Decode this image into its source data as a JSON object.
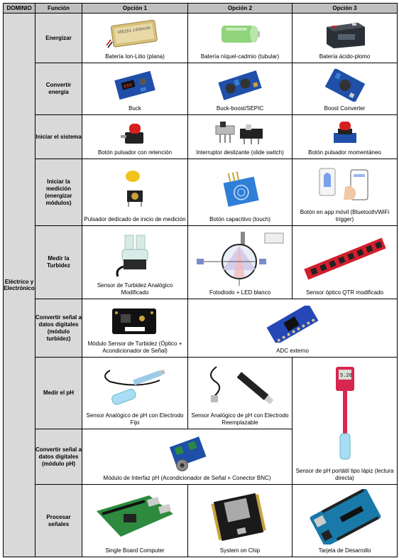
{
  "headers": {
    "dominio": "DOMINIO",
    "funcion": "Función",
    "op1": "Opción 1",
    "op2": "Opción 2",
    "op3": "Opción 3"
  },
  "dominio": "Eléctrico y Electrónico",
  "rows": {
    "energizar": {
      "func": "Energizar",
      "op1": "Batería Ion-Litio (plana)",
      "op2": "Batería níquel-cadmio (tubular)",
      "op3": "Batería ácido-plomo",
      "battery_label": "455261 1400mAh"
    },
    "convertir": {
      "func": "Convertir energía",
      "op1": "Buck",
      "op2": "Buck-boost/SEPIC",
      "op3": "Boost Converter"
    },
    "iniciar": {
      "func": "Iniciar el sistema",
      "op1": "Botón pulsador con retención",
      "op2": "Interruptor deslizante (slide switch)",
      "op3": "Botón pulsador momentáneo"
    },
    "medicion": {
      "func": "Iniciar la medición (energizar módulos)",
      "op1": "Pulsador dedicado de inicio de medición",
      "op2": "Botón capacitivo (touch)",
      "op3": "Botón en app móvil (Bluetooth/WiFi trigger)"
    },
    "turbidez": {
      "func": "Medir la Turbidez",
      "op1": "Sensor de Turbidez Analógico Modificado",
      "op2": "Fotodiodo + LED blanco",
      "op3": "Sensor óptico QTR modificado"
    },
    "conv_turb": {
      "func": "Convertir señal a datos digitales (módulo turbidez)",
      "op1": "Módulo Sensor de Turbidez (Óptico + Acondicionador de Señal)",
      "op2": "ADC externo"
    },
    "ph": {
      "func": "Medir el pH",
      "op1": "Sensor Analógico de pH con Electrodo Fijo",
      "op2": "Sensor Analógico de pH con Electrodo Reemplazable",
      "op3": "Sensor de pH portátil tipo lápiz (lectura directa)",
      "meter_reading": "5.26"
    },
    "conv_ph": {
      "func": "Convertir señal a datos digitales (módulo pH)",
      "op1": "Módulo de Interfaz pH (Acondicionador de Señal + Conector BNC)"
    },
    "procesar": {
      "func": "Procesar señales",
      "op1": "Single Board Computer",
      "op2": "System on Chip",
      "op3": "Tarjeta de Desarrollo"
    }
  }
}
